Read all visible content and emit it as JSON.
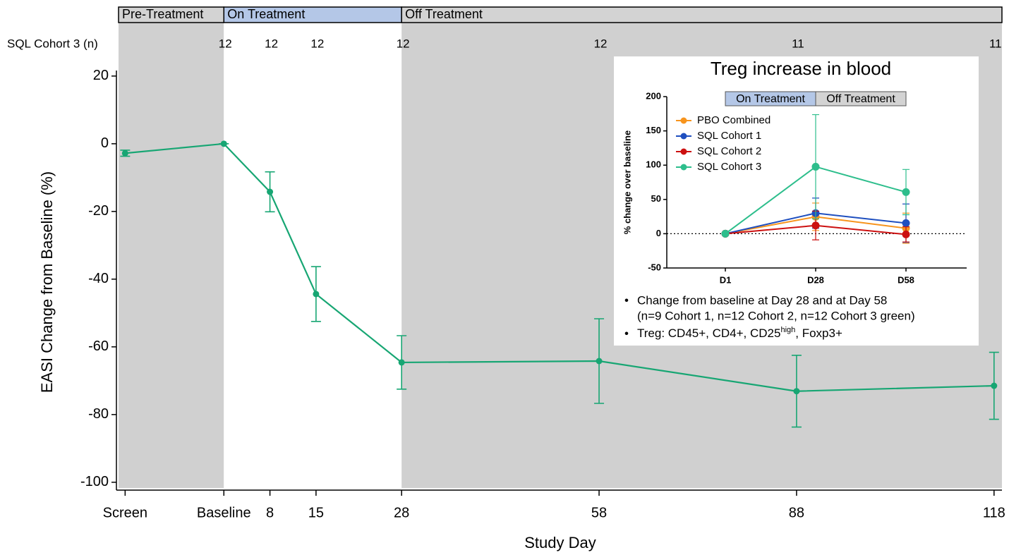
{
  "chart_data": [
    {
      "type": "line",
      "xlabel": "Study Day",
      "ylabel": "EASI Change from Baseline (%)",
      "x": [
        -14,
        1,
        8,
        15,
        28,
        58,
        88,
        118
      ],
      "values": [
        -2.8,
        0,
        -14.2,
        -44.4,
        -64.6,
        -64.2,
        -73.1,
        -71.5
      ],
      "errors": [
        0.9,
        0,
        5.9,
        8.1,
        7.9,
        12.5,
        10.6,
        9.9
      ],
      "color": "#17a673",
      "xlim": [
        -15,
        119.2
      ],
      "xticks": [
        {
          "value": -14,
          "label": "Screen"
        },
        {
          "value": 1,
          "label": "Baseline"
        },
        8,
        15,
        28,
        58,
        88,
        118
      ],
      "ylim": [
        -101.7,
        25.8
      ],
      "yticks": [
        20,
        0,
        -20,
        -40,
        -60,
        -80,
        -100
      ],
      "n_label": "SQL Cohort 3 (n)",
      "n": [
        null,
        12,
        12,
        12,
        12,
        12,
        11,
        11
      ],
      "phases": [
        {
          "label": "Pre-Treatment",
          "start": -15,
          "end": 1,
          "header_color": "#d3d3d3",
          "shade_color": "#d0d0d0"
        },
        {
          "label": "On Treatment",
          "start": 1,
          "end": 28,
          "header_color": "#b4c7e7",
          "shade_color": "#ffffff"
        },
        {
          "label": "Off Treatment",
          "start": 28,
          "end": 119.2,
          "header_color": "#d3d3d3",
          "shade_color": "#d0d0d0"
        }
      ]
    },
    {
      "type": "line",
      "title": "Treg increase in blood",
      "ylabel": "% change over baseline",
      "categories": [
        "D1",
        "D28",
        "D58"
      ],
      "ylim": [
        -50,
        200
      ],
      "yticks": [
        -50,
        0,
        50,
        100,
        150,
        200
      ],
      "reference_line": 0,
      "legend": "upper left",
      "phases": [
        {
          "label": "On Treatment",
          "color": "#b4c7e7"
        },
        {
          "label": "Off Treatment",
          "color": "#d3d3d3"
        }
      ],
      "series": [
        {
          "name": "PBO Combined",
          "color": "#f7941d",
          "values": [
            0,
            24.7,
            8
          ],
          "errors": [
            0,
            20,
            22
          ]
        },
        {
          "name": "SQL Cohort 1",
          "color": "#1f4fbf",
          "values": [
            0,
            30,
            15.4
          ],
          "errors": [
            0,
            22,
            28
          ]
        },
        {
          "name": "SQL Cohort 2",
          "color": "#cc1010",
          "values": [
            0,
            12,
            -1
          ],
          "errors": [
            0,
            21,
            11
          ]
        },
        {
          "name": "SQL Cohort 3",
          "color": "#2dbe8c",
          "values": [
            0,
            97.7,
            60.7
          ],
          "errors": [
            0,
            76,
            33
          ]
        }
      ],
      "notes": [
        {
          "lines": [
            "Change from baseline at Day 28 and at Day 58",
            "(n=9 Cohort 1, n=12 Cohort 2, n=12 Cohort 3 green)"
          ]
        },
        {
          "text": "Treg: CD45+, CD4+, CD25",
          "sup": "high",
          "tail": ", Foxp3+"
        }
      ]
    }
  ]
}
